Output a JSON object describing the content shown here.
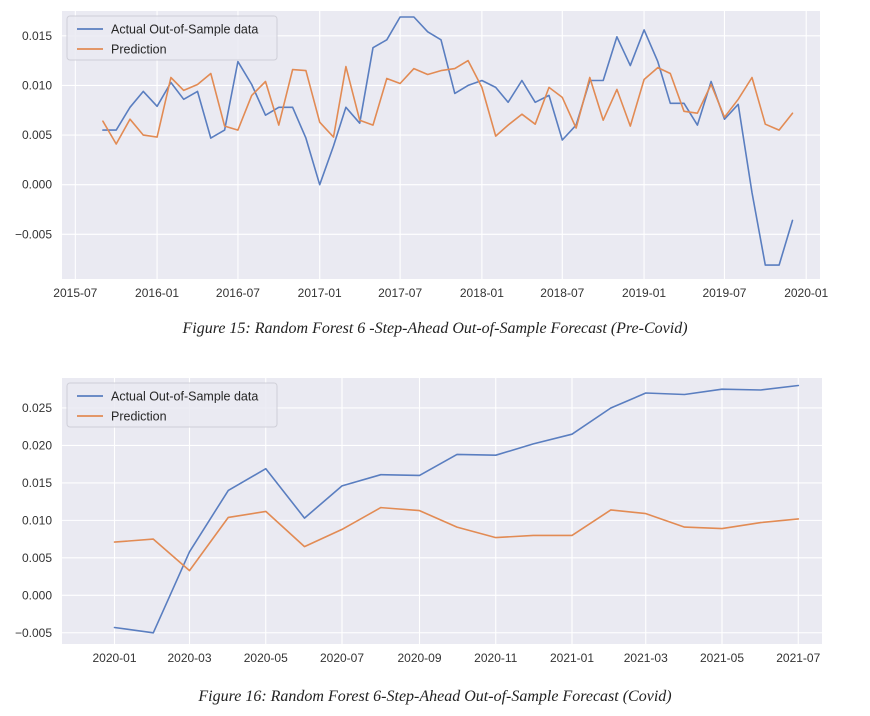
{
  "colors": {
    "actual": "#5a7ec0",
    "prediction": "#e28b54",
    "plot_bg": "#eaeaf2",
    "grid": "#ffffff"
  },
  "captions": {
    "figure15": "Figure 15: Random Forest 6 -Step-Ahead Out-of-Sample Forecast (Pre-Covid)",
    "figure16": "Figure 16: Random Forest 6-Step-Ahead Out-of-Sample Forecast (Covid)"
  },
  "chart_data": [
    {
      "type": "line",
      "title": "",
      "xlabel": "",
      "ylabel": "",
      "xlim": [
        "2015-06-01",
        "2020-02-01"
      ],
      "ylim": [
        -0.0095,
        0.0175
      ],
      "grid": true,
      "legend": "top-left",
      "x_tick_labels": [
        "2015-07",
        "2016-01",
        "2016-07",
        "2017-01",
        "2017-07",
        "2018-01",
        "2018-07",
        "2019-01",
        "2019-07",
        "2020-01"
      ],
      "x_ticks": [
        "2015-07-01",
        "2016-01-01",
        "2016-07-01",
        "2017-01-01",
        "2017-07-01",
        "2018-01-01",
        "2018-07-01",
        "2019-01-01",
        "2019-07-01",
        "2020-01-01"
      ],
      "y_tick_labels": [
        "−0.005",
        "0.000",
        "0.005",
        "0.010",
        "0.015"
      ],
      "y_ticks": [
        -0.005,
        0.0,
        0.005,
        0.01,
        0.015
      ],
      "x": [
        "2015-09-01",
        "2015-10-01",
        "2015-11-01",
        "2015-12-01",
        "2016-01-01",
        "2016-02-01",
        "2016-03-01",
        "2016-04-01",
        "2016-05-01",
        "2016-06-01",
        "2016-07-01",
        "2016-08-01",
        "2016-09-01",
        "2016-10-01",
        "2016-11-01",
        "2016-12-01",
        "2017-01-01",
        "2017-02-01",
        "2017-03-01",
        "2017-04-01",
        "2017-05-01",
        "2017-06-01",
        "2017-07-01",
        "2017-08-01",
        "2017-09-01",
        "2017-10-01",
        "2017-11-01",
        "2017-12-01",
        "2018-01-01",
        "2018-02-01",
        "2018-03-01",
        "2018-04-01",
        "2018-05-01",
        "2018-06-01",
        "2018-07-01",
        "2018-08-01",
        "2018-09-01",
        "2018-10-01",
        "2018-11-01",
        "2018-12-01",
        "2019-01-01",
        "2019-02-01",
        "2019-03-01",
        "2019-04-01",
        "2019-05-01",
        "2019-06-01",
        "2019-07-01",
        "2019-08-01",
        "2019-09-01",
        "2019-10-01",
        "2019-11-01",
        "2019-12-01"
      ],
      "series": [
        {
          "name": "Actual Out-of-Sample data",
          "color": "#5a7ec0",
          "values": [
            0.0055,
            0.0055,
            0.0078,
            0.0094,
            0.0079,
            0.0103,
            0.0086,
            0.0094,
            0.0047,
            0.0055,
            0.0124,
            0.0101,
            0.007,
            0.0078,
            0.0078,
            0.0047,
            0.0,
            0.0039,
            0.0078,
            0.0062,
            0.0138,
            0.0146,
            0.0169,
            0.0169,
            0.0154,
            0.0146,
            0.0092,
            0.01,
            0.0105,
            0.0098,
            0.0083,
            0.0105,
            0.0083,
            0.009,
            0.0045,
            0.006,
            0.0105,
            0.0105,
            0.0149,
            0.012,
            0.0156,
            0.0124,
            0.0082,
            0.0082,
            0.006,
            0.0104,
            0.0066,
            0.0081,
            -0.0008,
            -0.0081,
            -0.0081,
            -0.0036
          ]
        },
        {
          "name": "Prediction",
          "color": "#e28b54",
          "values": [
            0.0064,
            0.0041,
            0.0066,
            0.005,
            0.0048,
            0.0108,
            0.0095,
            0.0101,
            0.0112,
            0.0059,
            0.0055,
            0.009,
            0.0104,
            0.006,
            0.0116,
            0.0115,
            0.0063,
            0.0048,
            0.0119,
            0.0065,
            0.006,
            0.0107,
            0.0102,
            0.0117,
            0.0111,
            0.0115,
            0.0117,
            0.0125,
            0.0098,
            0.0049,
            0.006,
            0.0071,
            0.0061,
            0.0098,
            0.0088,
            0.0057,
            0.0108,
            0.0065,
            0.0096,
            0.0059,
            0.0106,
            0.0118,
            0.0112,
            0.0074,
            0.0072,
            0.0101,
            0.0068,
            0.0086,
            0.0108,
            0.0061,
            0.0055,
            0.0072
          ]
        }
      ]
    },
    {
      "type": "line",
      "title": "",
      "xlabel": "",
      "ylabel": "",
      "xlim": [
        "2019-11-20",
        "2021-07-20"
      ],
      "ylim": [
        -0.0065,
        0.029
      ],
      "grid": true,
      "legend": "top-left",
      "x_tick_labels": [
        "2020-01",
        "2020-03",
        "2020-05",
        "2020-07",
        "2020-09",
        "2020-11",
        "2021-01",
        "2021-03",
        "2021-05",
        "2021-07"
      ],
      "x_ticks": [
        "2020-01-01",
        "2020-03-01",
        "2020-05-01",
        "2020-07-01",
        "2020-09-01",
        "2020-11-01",
        "2021-01-01",
        "2021-03-01",
        "2021-05-01",
        "2021-07-01"
      ],
      "y_tick_labels": [
        "−0.005",
        "0.000",
        "0.005",
        "0.010",
        "0.015",
        "0.020",
        "0.025"
      ],
      "y_ticks": [
        -0.005,
        0.0,
        0.005,
        0.01,
        0.015,
        0.02,
        0.025
      ],
      "x": [
        "2020-01-01",
        "2020-02-01",
        "2020-03-01",
        "2020-04-01",
        "2020-05-01",
        "2020-06-01",
        "2020-07-01",
        "2020-08-01",
        "2020-09-01",
        "2020-10-01",
        "2020-11-01",
        "2020-12-01",
        "2021-01-01",
        "2021-02-01",
        "2021-03-01",
        "2021-04-01",
        "2021-05-01",
        "2021-06-01",
        "2021-07-01"
      ],
      "series": [
        {
          "name": "Actual Out-of-Sample data",
          "color": "#5a7ec0",
          "values": [
            -0.0043,
            -0.005,
            0.0058,
            0.014,
            0.0169,
            0.0103,
            0.0146,
            0.0161,
            0.016,
            0.0188,
            0.0187,
            0.0202,
            0.0215,
            0.025,
            0.027,
            0.0268,
            0.0275,
            0.0274,
            0.028
          ]
        },
        {
          "name": "Prediction",
          "color": "#e28b54",
          "values": [
            0.0071,
            0.0075,
            0.0033,
            0.0104,
            0.0112,
            0.0065,
            0.0088,
            0.0117,
            0.0113,
            0.0091,
            0.0077,
            0.008,
            0.008,
            0.0114,
            0.0109,
            0.0091,
            0.0089,
            0.0097,
            0.0102
          ]
        }
      ]
    }
  ]
}
